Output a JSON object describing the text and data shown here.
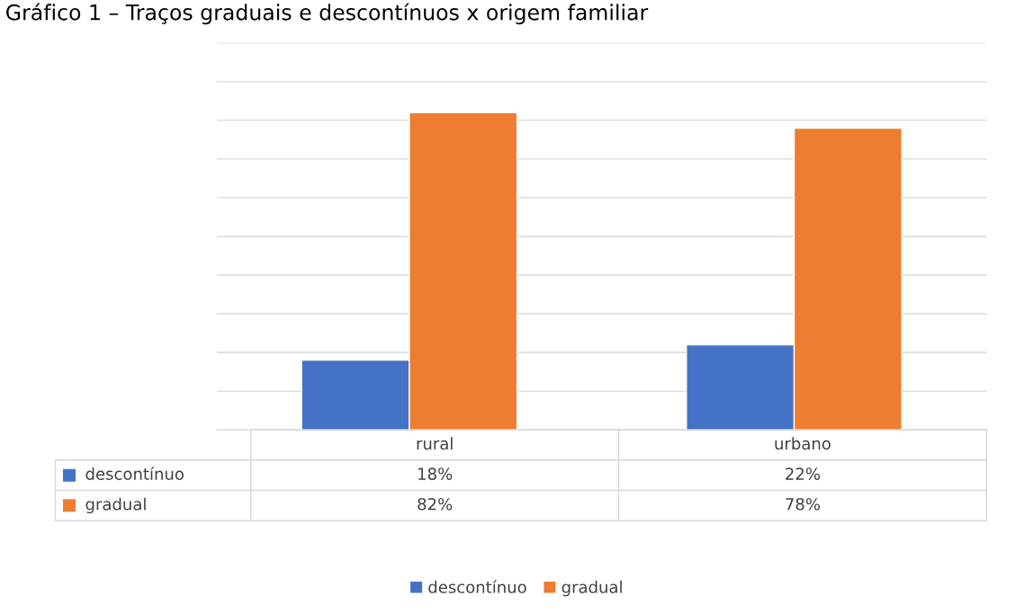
{
  "chart_data": {
    "type": "bar",
    "title": "Gráfico 1 – Traços graduais e descontínuos x origem familiar",
    "categories": [
      "rural",
      "urbano"
    ],
    "series": [
      {
        "name": "descontínuo",
        "color": "#4472c4",
        "values": [
          18,
          22
        ],
        "value_labels": [
          "18%",
          "22%"
        ]
      },
      {
        "name": "gradual",
        "color": "#ed7d31",
        "values": [
          82,
          78
        ],
        "value_labels": [
          "82%",
          "78%"
        ]
      }
    ],
    "ylim": [
      0,
      100
    ],
    "yticks": [
      {
        "value": 0,
        "label": null
      },
      {
        "value": 10,
        "label": null
      },
      {
        "value": 20,
        "label": null
      },
      {
        "value": 30,
        "label": null
      },
      {
        "value": 40,
        "label": null
      },
      {
        "value": 50,
        "label": null
      },
      {
        "value": 60,
        "label": null
      },
      {
        "value": 70,
        "label": null
      },
      {
        "value": 80,
        "label": null
      },
      {
        "value": 90,
        "label": null
      },
      {
        "value": 100,
        "label": null
      }
    ],
    "grid": "y",
    "legend": "bottom"
  }
}
